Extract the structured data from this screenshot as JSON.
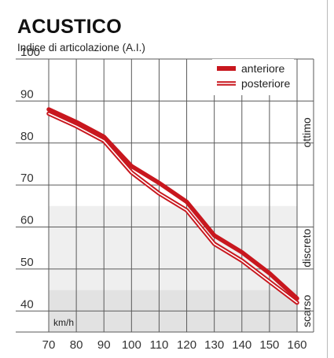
{
  "chart_data": {
    "type": "line",
    "title": "ACUSTICO",
    "subtitle": "Indice di articolazione (A.I.)",
    "xlabel": "km/h",
    "ylabel": "",
    "x": [
      70,
      80,
      90,
      100,
      110,
      120,
      130,
      140,
      150,
      160
    ],
    "ylim": [
      35,
      100
    ],
    "yticks": [
      40,
      50,
      60,
      70,
      80,
      90,
      100
    ],
    "grid": true,
    "legend_position": "top-right",
    "series": [
      {
        "name": "anteriore",
        "style": "solid",
        "color": "#c8171e",
        "values": [
          88,
          85,
          81.5,
          74.5,
          70.5,
          66,
          58,
          54,
          49,
          43
        ]
      },
      {
        "name": "posteriore",
        "style": "double",
        "color": "#c8171e",
        "values": [
          87,
          84,
          80.5,
          73,
          68,
          64,
          56,
          52,
          47,
          42
        ]
      }
    ],
    "bands": [
      {
        "label": "ottimo",
        "range": [
          65,
          100
        ],
        "color": "#ffffff"
      },
      {
        "label": "discreto",
        "range": [
          45,
          65
        ],
        "color": "#efefef"
      },
      {
        "label": "scarso",
        "range": [
          35,
          45
        ],
        "color": "#e2e2e2"
      }
    ]
  }
}
